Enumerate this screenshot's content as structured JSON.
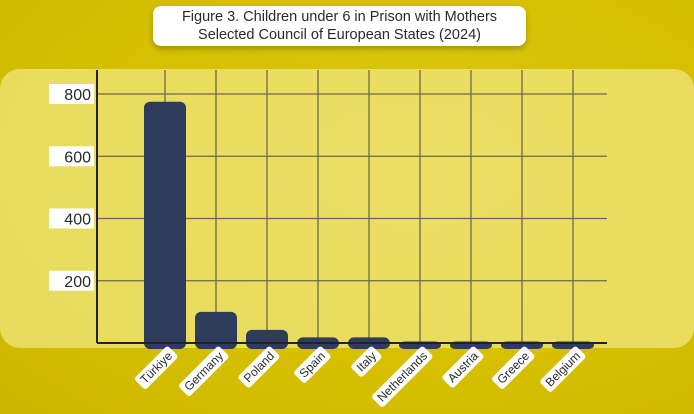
{
  "title_line1": "Figure 3. Children under 6 in Prison with Mothers",
  "title_line2": "Selected Council of European States (2024)",
  "colors": {
    "background": "#d6c000",
    "panel": "#f0e478",
    "bar": "#2e3b5a",
    "grid": "#6b6b4a"
  },
  "chart_data": {
    "type": "bar",
    "title": "Figure 3. Children under 6 in Prison with Mothers Selected Council of European States (2024)",
    "categories": [
      "Türkiye",
      "Germany",
      "Poland",
      "Spain",
      "Italy",
      "Netherlands",
      "Austria",
      "Greece",
      "Belgium"
    ],
    "values": [
      775,
      100,
      42,
      18,
      18,
      5,
      5,
      5,
      5
    ],
    "yticks": [
      200,
      400,
      600,
      800
    ],
    "ylim": [
      0,
      800
    ],
    "xlabel": "",
    "ylabel": "",
    "grid": true
  }
}
